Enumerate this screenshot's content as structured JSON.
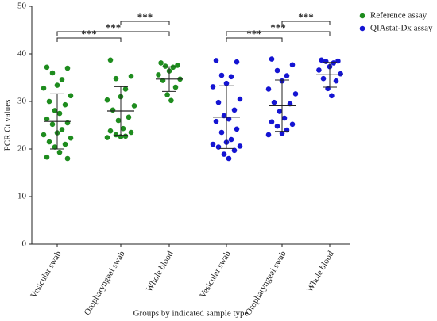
{
  "chart_data": {
    "type": "dot",
    "ylabel": "PCR Ct values",
    "xlabel": "Groups by indicated sample type",
    "categories": [
      "Vesicular swab",
      "Oropharyngeal swab",
      "Whole blood",
      "Vesicular swab",
      "Oropharyngeal swab",
      "Whole blood"
    ],
    "ylim": [
      0,
      50
    ],
    "yticks": [
      0,
      10,
      20,
      30,
      40,
      50
    ],
    "legend": "top-right",
    "series": [
      {
        "name": "Reference assay",
        "color": "#1e8c1e",
        "values": [
          [
            37.2,
            37,
            36,
            34.6,
            33.4,
            32.8,
            31.2,
            30,
            29.3,
            28.1,
            27.5,
            26.3,
            25.5,
            25.2,
            24.1,
            23.4,
            23,
            22.3,
            21.5,
            21,
            20.4,
            19.3,
            18.3,
            18
          ],
          [
            38.7,
            35.3,
            34.8,
            32.6,
            31,
            30.3,
            29.1,
            28.2,
            26.7,
            26,
            24.3,
            23.8,
            23.5,
            23,
            22.7,
            22.6,
            22.4
          ],
          [
            38.1,
            37.6,
            37.4,
            37.2,
            36.4,
            35.6,
            34.7,
            34.4,
            33,
            31.4,
            30.2
          ],
          null,
          null,
          null
        ],
        "means": [
          25.8,
          28,
          34.7,
          null,
          null,
          null
        ],
        "sds": [
          5.8,
          5.1,
          2.6,
          null,
          null,
          null
        ]
      },
      {
        "name": "QIAstat-Dx assay",
        "color": "#1414d2",
        "values": [
          null,
          null,
          null,
          [
            38.6,
            38.3,
            35.5,
            35.2,
            33.8,
            33.1,
            30.5,
            29.8,
            28.2,
            27,
            26.3,
            25.8,
            24.2,
            23.5,
            22,
            21.4,
            21,
            20.6,
            20.4,
            19.7,
            18.9,
            18
          ],
          [
            38.9,
            37.7,
            36.5,
            35.4,
            34.3,
            32.6,
            31.6,
            29.8,
            29.5,
            27.9,
            26.5,
            25.7,
            25.2,
            24.8,
            24,
            23.3,
            23
          ],
          [
            38.7,
            38.5,
            38.4,
            38.1,
            37.3,
            36.6,
            35.8,
            34.8,
            34.3,
            32.7,
            31.2
          ]
        ],
        "means": [
          null,
          null,
          null,
          26.7,
          29.1,
          35.6
        ],
        "sds": [
          null,
          null,
          null,
          6.6,
          5.4,
          2.6
        ]
      }
    ],
    "comparisons": [
      {
        "from": 0,
        "to": 1,
        "label": "***"
      },
      {
        "from": 0,
        "to": 2,
        "label": "***"
      },
      {
        "from": 1,
        "to": 2,
        "label": "***"
      },
      {
        "from": 3,
        "to": 4,
        "label": "***"
      },
      {
        "from": 3,
        "to": 5,
        "label": "***"
      },
      {
        "from": 4,
        "to": 5,
        "label": "***"
      }
    ]
  }
}
